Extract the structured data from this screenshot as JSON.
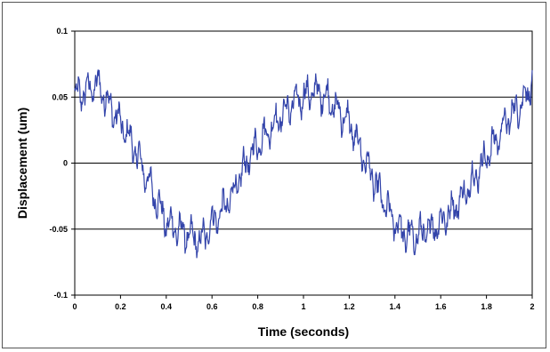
{
  "chart_data": {
    "type": "line",
    "title": "",
    "xlabel": "Time (seconds)",
    "ylabel": "Displacement (um)",
    "xlim": [
      0,
      2
    ],
    "ylim": [
      -0.1,
      0.1
    ],
    "x_ticks": [
      0,
      0.2,
      0.4,
      0.6,
      0.8,
      1,
      1.2,
      1.4,
      1.6,
      1.8,
      2
    ],
    "x_tick_labels": [
      "0",
      "0.2",
      "0.4",
      "0.6",
      "0.8",
      "1",
      "1.2",
      "1.4",
      "1.6",
      "1.8",
      "2"
    ],
    "y_ticks": [
      -0.1,
      -0.05,
      0,
      0.05,
      0.1
    ],
    "y_tick_labels": [
      "-0.1",
      "-0.05",
      "0",
      "0.05",
      "0.1"
    ],
    "grid": "horizontal",
    "legend": "none",
    "line_color": "#3344aa",
    "series": [
      {
        "x": [
          0,
          0.05,
          0.1,
          0.15,
          0.2,
          0.25,
          0.3,
          0.35,
          0.4,
          0.45,
          0.5,
          0.55,
          0.6,
          0.65,
          0.7,
          0.75,
          0.8,
          0.85,
          0.9,
          0.95,
          1.0,
          1.05,
          1.1,
          1.15,
          1.2,
          1.25,
          1.3,
          1.35,
          1.4,
          1.45,
          1.5,
          1.55,
          1.6,
          1.65,
          1.7,
          1.75,
          1.8,
          1.85,
          1.9,
          1.95,
          2.0
        ],
        "values": [
          0.05,
          0.055,
          0.06,
          0.045,
          0.03,
          0.015,
          -0.005,
          -0.025,
          -0.045,
          -0.05,
          -0.055,
          -0.06,
          -0.045,
          -0.035,
          -0.02,
          0.0,
          0.015,
          0.025,
          0.035,
          0.045,
          0.05,
          0.055,
          0.05,
          0.04,
          0.03,
          0.01,
          -0.01,
          -0.03,
          -0.045,
          -0.055,
          -0.055,
          -0.05,
          -0.045,
          -0.035,
          -0.025,
          -0.01,
          0.005,
          0.02,
          0.035,
          0.045,
          0.06
        ]
      }
    ]
  }
}
